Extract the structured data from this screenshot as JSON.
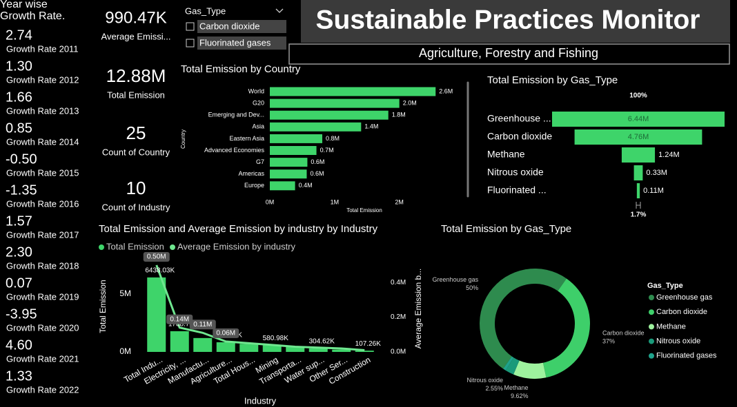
{
  "header": {
    "title": "Sustainable Practices Monitor",
    "industry_filter": "Agriculture, Forestry and Fishing"
  },
  "growth_rates": {
    "title": "Year wise Growth Rate.",
    "items": [
      {
        "value": "2.74",
        "label": "Growth Rate 2011"
      },
      {
        "value": "1.30",
        "label": "Growth Rate 2012"
      },
      {
        "value": "1.66",
        "label": "Growth Rate 2013"
      },
      {
        "value": "0.85",
        "label": "Growth Rate 2014"
      },
      {
        "value": "-0.50",
        "label": "Growth Rate 2015"
      },
      {
        "value": "-1.35",
        "label": "Growth Rate 2016"
      },
      {
        "value": "1.57",
        "label": "Growth Rate 2017"
      },
      {
        "value": "2.30",
        "label": "Growth Rate 2018"
      },
      {
        "value": "0.07",
        "label": "Growth Rate 2019"
      },
      {
        "value": "-3.95",
        "label": "Growth Rate 2020"
      },
      {
        "value": "4.60",
        "label": "Growth Rate 2021"
      },
      {
        "value": "1.33",
        "label": "Growth Rate 2022"
      }
    ]
  },
  "kpis": [
    {
      "value": "990.47K",
      "label": "Average Emissi..."
    },
    {
      "value": "12.88M",
      "label": "Total Emission"
    },
    {
      "value": "25",
      "label": "Count of Country"
    },
    {
      "value": "10",
      "label": "Count of Industry"
    }
  ],
  "slicer": {
    "title": "Gas_Type",
    "options": [
      "Carbon dioxide",
      "Fluorinated gases"
    ]
  },
  "chart_data": [
    {
      "type": "bar",
      "orientation": "horizontal",
      "title": "Total Emission by Country",
      "x_label": "Total Emission",
      "y_label": "Country",
      "categories": [
        "World",
        "G20",
        "Emerging and Dev...",
        "Asia",
        "Eastern Asia",
        "Advanced Economies",
        "G7",
        "Americas",
        "Europe"
      ],
      "values": [
        2560000,
        2000000,
        1830000,
        1410000,
        810000,
        720000,
        580000,
        570000,
        390000
      ],
      "value_labels": [
        "2.6M",
        "2.0M",
        "1.8M",
        "1.4M",
        "0.8M",
        "0.7M",
        "0.6M",
        "0.6M",
        "0.4M"
      ],
      "color": "#3ed46a",
      "xlim": [
        0,
        2600000
      ],
      "xticks": [
        {
          "value": 0,
          "label": "0M"
        },
        {
          "value": 1000000,
          "label": "1M"
        },
        {
          "value": 2000000,
          "label": "2M"
        }
      ]
    },
    {
      "type": "funnel",
      "title": "Total Emission by Gas_Type",
      "categories": [
        "Greenhouse ...",
        "Carbon dioxide",
        "Methane",
        "Nitrous oxide",
        "Fluorinated ..."
      ],
      "values": [
        6440000,
        4760000,
        1240000,
        330000,
        110000
      ],
      "value_labels": [
        "6.44M",
        "4.76M",
        "1.24M",
        "0.33M",
        "0.11M"
      ],
      "top_label": "100%",
      "bottom_label": "1.7%",
      "color": "#3ed46a"
    },
    {
      "type": "bar_line",
      "title": "Total Emission and Average Emission by industry by Industry",
      "x_label": "Industry",
      "y_label": "Total Emission",
      "y2_label": "Average Emission b...",
      "categories": [
        "Total Indu...",
        "Electricity, ...",
        "Manufactu...",
        "Agriculture...",
        "Total Hous...",
        "Mining",
        "Transporta...",
        "Water sup...",
        "Other Ser...",
        "Construction"
      ],
      "series": [
        {
          "name": "Total Emission",
          "color": "#3ed46a",
          "values": [
            6438030,
            1788770,
            1200000,
            833840,
            700000,
            580980,
            450000,
            304620,
            200000,
            107260
          ],
          "value_labels": [
            "6438.03K",
            "1788.77K",
            null,
            "833.84K",
            null,
            "580.98K",
            null,
            "304.62K",
            null,
            "107.26K"
          ]
        },
        {
          "name": "Average Emission by industry",
          "color": "#6fe68f",
          "axis": "y2",
          "values": [
            500000,
            140000,
            110000,
            60000,
            50000,
            40000,
            30000,
            25000,
            20000,
            10000
          ],
          "value_labels": [
            "0.50M",
            "0.14M",
            "0.11M",
            "0.06M",
            null,
            null,
            null,
            null,
            null,
            null
          ]
        }
      ],
      "ylim": [
        0,
        7500000
      ],
      "yticks": [
        {
          "value": 0,
          "label": "0M"
        },
        {
          "value": 5000000,
          "label": "5M"
        }
      ],
      "y2lim": [
        0,
        500000
      ],
      "y2ticks": [
        {
          "value": 0,
          "label": "0.0M"
        },
        {
          "value": 200000,
          "label": "0.2M"
        },
        {
          "value": 400000,
          "label": "0.4M"
        }
      ]
    },
    {
      "type": "donut",
      "title": "Total Emission by Gas_Type",
      "legend_title": "Gas_Type",
      "legend": "right",
      "categories": [
        "Greenhouse gas",
        "Carbon dioxide",
        "Methane",
        "Nitrous oxide",
        "Fluorinated gases"
      ],
      "values": [
        50,
        36.96,
        9.62,
        2.55,
        0.85
      ],
      "value_labels": [
        "50%",
        "37%",
        "9.62%",
        "2.55%",
        null
      ],
      "colors": [
        "#2e8b4e",
        "#3ecf6a",
        "#9ef29e",
        "#1a9a7a",
        "#1fa38c"
      ]
    }
  ]
}
